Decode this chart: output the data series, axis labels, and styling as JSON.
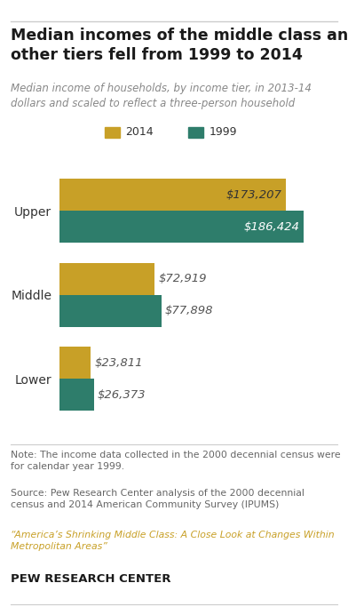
{
  "title": "Median incomes of the middle class and\nother tiers fell from 1999 to 2014",
  "subtitle": "Median income of households, by income tier, in 2013-14\ndollars and scaled to reflect a three-person household",
  "categories": [
    "Upper",
    "Middle",
    "Lower"
  ],
  "values_2014": [
    173207,
    72919,
    23811
  ],
  "values_1999": [
    186424,
    77898,
    26373
  ],
  "labels_2014": [
    "$173,207",
    "$72,919",
    "$23,811"
  ],
  "labels_1999": [
    "$186,424",
    "$77,898",
    "$26,373"
  ],
  "color_2014": "#C8A027",
  "color_1999": "#2E7D6B",
  "note": "Note: The income data collected in the 2000 decennial census were\nfor calendar year 1999.",
  "source": "Source: Pew Research Center analysis of the 2000 decennial\ncensus and 2014 American Community Survey (IPUMS)",
  "report": "“America’s Shrinking Middle Class: A Close Look at Changes Within\nMetropolitan Areas”",
  "footer": "PEW RESEARCH CENTER",
  "background_color": "#FFFFFF",
  "title_color": "#1a1a1a",
  "note_color": "#666666",
  "report_color": "#C8A027"
}
